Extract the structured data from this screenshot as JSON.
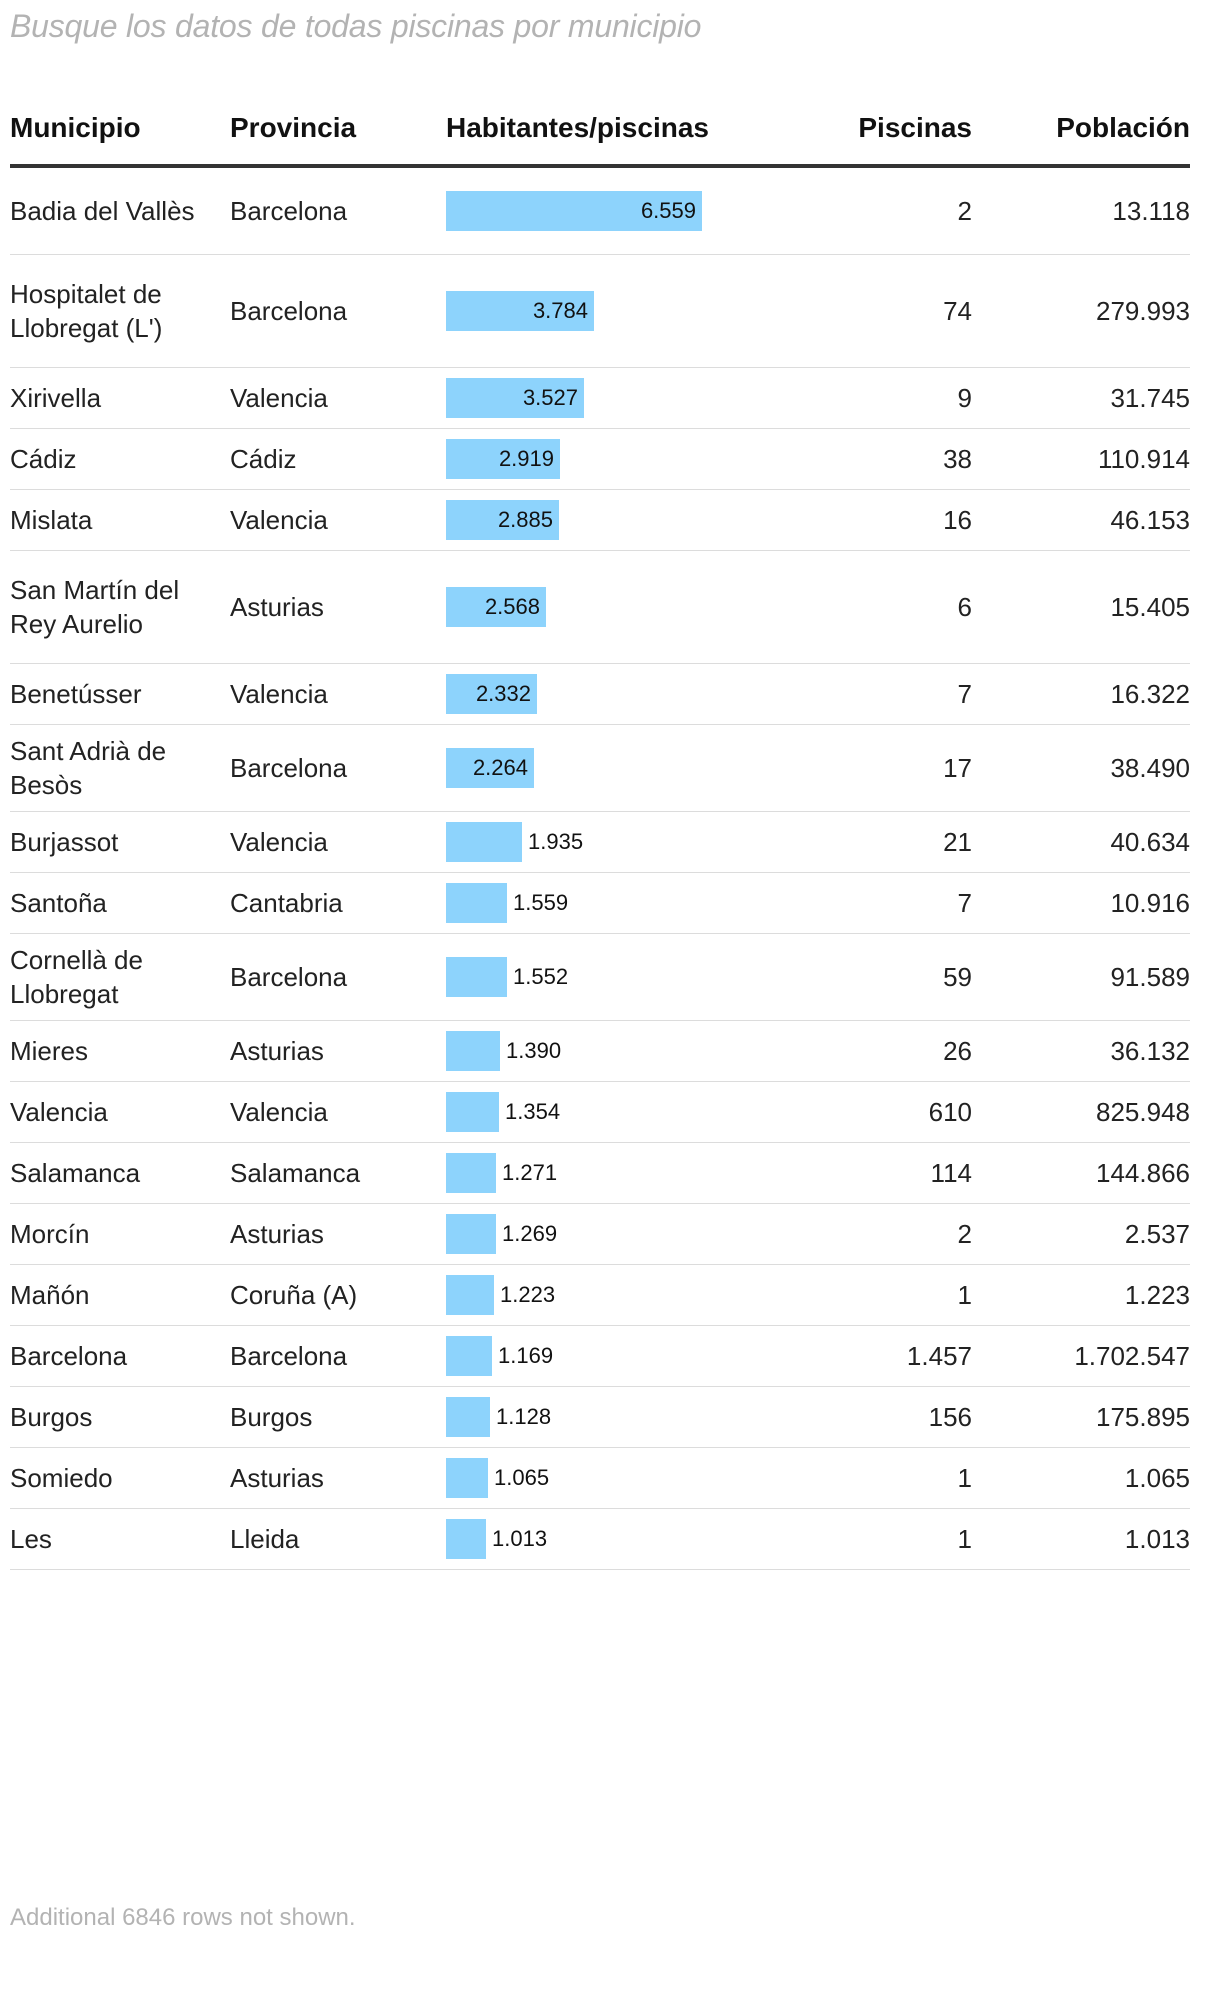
{
  "search": {
    "placeholder": "Busque los datos de todas piscinas por municipio"
  },
  "chart_data": {
    "type": "table",
    "columns": [
      "Municipio",
      "Provincia",
      "Habitantes/piscinas",
      "Piscinas",
      "Población"
    ],
    "bar_color": "#8dd3fc",
    "bar_max": 6559,
    "rows": [
      {
        "municipio": "Badia del Vallès",
        "provincia": "Barcelona",
        "habitantes_piscinas": 6559,
        "label": "6.559",
        "piscinas": "2",
        "poblacion": "13.118"
      },
      {
        "municipio": "Hospitalet de Llobregat (L')",
        "provincia": "Barcelona",
        "habitantes_piscinas": 3784,
        "label": "3.784",
        "piscinas": "74",
        "poblacion": "279.993"
      },
      {
        "municipio": "Xirivella",
        "provincia": "Valencia",
        "habitantes_piscinas": 3527,
        "label": "3.527",
        "piscinas": "9",
        "poblacion": "31.745"
      },
      {
        "municipio": "Cádiz",
        "provincia": "Cádiz",
        "habitantes_piscinas": 2919,
        "label": "2.919",
        "piscinas": "38",
        "poblacion": "110.914"
      },
      {
        "municipio": "Mislata",
        "provincia": "Valencia",
        "habitantes_piscinas": 2885,
        "label": "2.885",
        "piscinas": "16",
        "poblacion": "46.153"
      },
      {
        "municipio": "San Martín del Rey Aurelio",
        "provincia": "Asturias",
        "habitantes_piscinas": 2568,
        "label": "2.568",
        "piscinas": "6",
        "poblacion": "15.405"
      },
      {
        "municipio": "Benetússer",
        "provincia": "Valencia",
        "habitantes_piscinas": 2332,
        "label": "2.332",
        "piscinas": "7",
        "poblacion": "16.322"
      },
      {
        "municipio": "Sant Adrià de Besòs",
        "provincia": "Barcelona",
        "habitantes_piscinas": 2264,
        "label": "2.264",
        "piscinas": "17",
        "poblacion": "38.490"
      },
      {
        "municipio": "Burjassot",
        "provincia": "Valencia",
        "habitantes_piscinas": 1935,
        "label": "1.935",
        "piscinas": "21",
        "poblacion": "40.634"
      },
      {
        "municipio": "Santoña",
        "provincia": "Cantabria",
        "habitantes_piscinas": 1559,
        "label": "1.559",
        "piscinas": "7",
        "poblacion": "10.916"
      },
      {
        "municipio": "Cornellà de Llobregat",
        "provincia": "Barcelona",
        "habitantes_piscinas": 1552,
        "label": "1.552",
        "piscinas": "59",
        "poblacion": "91.589"
      },
      {
        "municipio": "Mieres",
        "provincia": "Asturias",
        "habitantes_piscinas": 1390,
        "label": "1.390",
        "piscinas": "26",
        "poblacion": "36.132"
      },
      {
        "municipio": "Valencia",
        "provincia": "Valencia",
        "habitantes_piscinas": 1354,
        "label": "1.354",
        "piscinas": "610",
        "poblacion": "825.948"
      },
      {
        "municipio": "Salamanca",
        "provincia": "Salamanca",
        "habitantes_piscinas": 1271,
        "label": "1.271",
        "piscinas": "114",
        "poblacion": "144.866"
      },
      {
        "municipio": "Morcín",
        "provincia": "Asturias",
        "habitantes_piscinas": 1269,
        "label": "1.269",
        "piscinas": "2",
        "poblacion": "2.537"
      },
      {
        "municipio": "Mañón",
        "provincia": "Coruña (A)",
        "habitantes_piscinas": 1223,
        "label": "1.223",
        "piscinas": "1",
        "poblacion": "1.223"
      },
      {
        "municipio": "Barcelona",
        "provincia": "Barcelona",
        "habitantes_piscinas": 1169,
        "label": "1.169",
        "piscinas": "1.457",
        "poblacion": "1.702.547"
      },
      {
        "municipio": "Burgos",
        "provincia": "Burgos",
        "habitantes_piscinas": 1128,
        "label": "1.128",
        "piscinas": "156",
        "poblacion": "175.895"
      },
      {
        "municipio": "Somiedo",
        "provincia": "Asturias",
        "habitantes_piscinas": 1065,
        "label": "1.065",
        "piscinas": "1",
        "poblacion": "1.065"
      },
      {
        "municipio": "Les",
        "provincia": "Lleida",
        "habitantes_piscinas": 1013,
        "label": "1.013",
        "piscinas": "1",
        "poblacion": "1.013"
      }
    ]
  },
  "footer": {
    "note": "Additional 6846 rows not shown."
  }
}
